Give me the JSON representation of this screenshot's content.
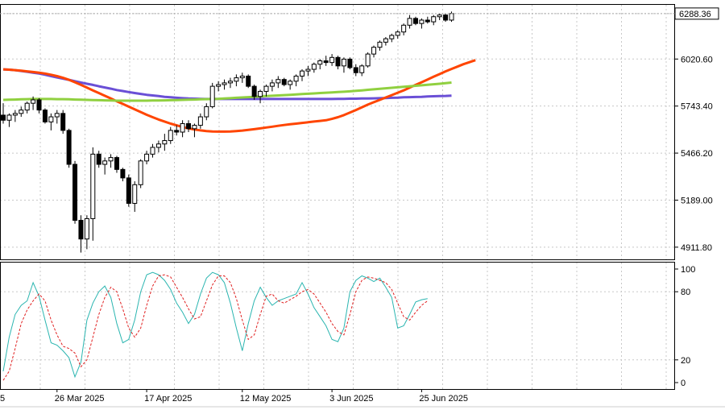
{
  "chart_data": [
    {
      "type": "candlestick",
      "panel": "price",
      "current_price": "6288.36",
      "price_axis_ticks": [
        "6288.36",
        "6020.60",
        "5743.40",
        "5466.20",
        "5189.00",
        "4911.80"
      ],
      "price_axis_values": [
        6288.36,
        6020.6,
        5743.4,
        5466.2,
        5189.0,
        4911.8
      ],
      "ylim": [
        4840,
        6340
      ],
      "x_tick_labels": [
        "26 Mar 2025",
        "17 Apr 2025",
        "12 May 2025",
        "3 Jun 2025",
        "25 Jun 2025"
      ],
      "x_tick_index": [
        9,
        24,
        40,
        55,
        70
      ],
      "x_left_partial_label": "5",
      "candles_ohlc": [
        [
          5690,
          5760,
          5640,
          5660
        ],
        [
          5660,
          5700,
          5620,
          5690
        ],
        [
          5690,
          5720,
          5650,
          5700
        ],
        [
          5700,
          5740,
          5680,
          5720
        ],
        [
          5720,
          5770,
          5700,
          5760
        ],
        [
          5760,
          5800,
          5720,
          5780
        ],
        [
          5780,
          5790,
          5700,
          5720
        ],
        [
          5720,
          5730,
          5640,
          5650
        ],
        [
          5650,
          5700,
          5600,
          5680
        ],
        [
          5680,
          5720,
          5640,
          5700
        ],
        [
          5700,
          5720,
          5580,
          5600
        ],
        [
          5600,
          5610,
          5380,
          5400
        ],
        [
          5400,
          5420,
          5050,
          5070
        ],
        [
          5070,
          5100,
          4880,
          4960
        ],
        [
          4960,
          5100,
          4900,
          5080
        ],
        [
          5080,
          5500,
          4950,
          5460
        ],
        [
          5460,
          5480,
          5380,
          5400
        ],
        [
          5400,
          5440,
          5340,
          5420
        ],
        [
          5420,
          5460,
          5380,
          5440
        ],
        [
          5440,
          5450,
          5350,
          5370
        ],
        [
          5370,
          5380,
          5300,
          5320
        ],
        [
          5320,
          5340,
          5150,
          5170
        ],
        [
          5170,
          5300,
          5120,
          5280
        ],
        [
          5280,
          5430,
          5260,
          5420
        ],
        [
          5420,
          5480,
          5400,
          5460
        ],
        [
          5460,
          5520,
          5440,
          5500
        ],
        [
          5500,
          5540,
          5470,
          5520
        ],
        [
          5520,
          5580,
          5480,
          5540
        ],
        [
          5540,
          5620,
          5520,
          5600
        ],
        [
          5600,
          5630,
          5570,
          5590
        ],
        [
          5590,
          5660,
          5560,
          5640
        ],
        [
          5640,
          5660,
          5590,
          5610
        ],
        [
          5610,
          5640,
          5560,
          5630
        ],
        [
          5630,
          5700,
          5610,
          5680
        ],
        [
          5680,
          5760,
          5660,
          5740
        ],
        [
          5740,
          5880,
          5730,
          5860
        ],
        [
          5860,
          5890,
          5830,
          5870
        ],
        [
          5870,
          5900,
          5840,
          5880
        ],
        [
          5880,
          5910,
          5850,
          5890
        ],
        [
          5890,
          5930,
          5860,
          5910
        ],
        [
          5910,
          5940,
          5880,
          5920
        ],
        [
          5920,
          5930,
          5850,
          5860
        ],
        [
          5860,
          5870,
          5780,
          5800
        ],
        [
          5800,
          5840,
          5760,
          5830
        ],
        [
          5830,
          5870,
          5800,
          5860
        ],
        [
          5860,
          5900,
          5830,
          5880
        ],
        [
          5880,
          5920,
          5850,
          5900
        ],
        [
          5900,
          5910,
          5860,
          5870
        ],
        [
          5870,
          5900,
          5840,
          5890
        ],
        [
          5890,
          5930,
          5860,
          5920
        ],
        [
          5920,
          5960,
          5890,
          5950
        ],
        [
          5950,
          5980,
          5920,
          5960
        ],
        [
          5960,
          6000,
          5940,
          5990
        ],
        [
          5990,
          6020,
          5960,
          6010
        ],
        [
          6010,
          6040,
          5980,
          6000
        ],
        [
          6000,
          6050,
          5980,
          6030
        ],
        [
          6030,
          6040,
          5960,
          5980
        ],
        [
          5980,
          6030,
          5940,
          6020
        ],
        [
          6020,
          6030,
          5960,
          5970
        ],
        [
          5970,
          5990,
          5920,
          5940
        ],
        [
          5940,
          5990,
          5920,
          5980
        ],
        [
          5980,
          6060,
          5970,
          6050
        ],
        [
          6050,
          6100,
          6030,
          6090
        ],
        [
          6090,
          6130,
          6070,
          6120
        ],
        [
          6120,
          6150,
          6100,
          6140
        ],
        [
          6140,
          6170,
          6120,
          6160
        ],
        [
          6160,
          6190,
          6140,
          6180
        ],
        [
          6180,
          6230,
          6160,
          6220
        ],
        [
          6220,
          6280,
          6200,
          6260
        ],
        [
          6260,
          6270,
          6220,
          6230
        ],
        [
          6230,
          6260,
          6200,
          6250
        ],
        [
          6250,
          6270,
          6230,
          6240
        ],
        [
          6240,
          6280,
          6220,
          6270
        ],
        [
          6270,
          6290,
          6250,
          6280
        ],
        [
          6280,
          6290,
          6240,
          6250
        ],
        [
          6250,
          6300,
          6240,
          6288.36
        ]
      ],
      "ma_series": [
        {
          "color": "#6a4fd6",
          "values": [
            5960,
            5958,
            5955,
            5950,
            5945,
            5940,
            5935,
            5928,
            5920,
            5912,
            5905,
            5898,
            5890,
            5882,
            5875,
            5868,
            5860,
            5853,
            5846,
            5838,
            5832,
            5826,
            5820,
            5815,
            5810,
            5806,
            5802,
            5798,
            5795,
            5792,
            5790,
            5788,
            5787,
            5786,
            5785,
            5785,
            5785,
            5785,
            5785,
            5785,
            5785,
            5785,
            5785,
            5785,
            5785,
            5785,
            5785,
            5785,
            5785,
            5785,
            5785,
            5785,
            5785,
            5785,
            5785,
            5785,
            5786,
            5786,
            5787,
            5787,
            5788,
            5788,
            5789,
            5790,
            5791,
            5792,
            5793,
            5795,
            5796,
            5797,
            5798,
            5800,
            5801,
            5802,
            5803,
            5805
          ]
        },
        {
          "color": "#ff4500",
          "values": [
            5960,
            5958,
            5955,
            5952,
            5948,
            5944,
            5940,
            5935,
            5928,
            5920,
            5910,
            5898,
            5884,
            5868,
            5852,
            5836,
            5820,
            5804,
            5788,
            5772,
            5756,
            5740,
            5724,
            5708,
            5692,
            5678,
            5664,
            5652,
            5640,
            5630,
            5620,
            5612,
            5605,
            5600,
            5596,
            5594,
            5593,
            5593,
            5594,
            5596,
            5599,
            5603,
            5607,
            5612,
            5617,
            5622,
            5627,
            5632,
            5636,
            5640,
            5644,
            5648,
            5652,
            5656,
            5660,
            5668,
            5678,
            5690,
            5705,
            5720,
            5736,
            5752,
            5766,
            5780,
            5794,
            5808,
            5822,
            5836,
            5852,
            5868,
            5884,
            5900,
            5916,
            5932,
            5948,
            5962,
            5976,
            5990,
            6002,
            6014
          ]
        },
        {
          "color": "#90d040",
          "values": [
            5780,
            5781,
            5782,
            5783,
            5784,
            5785,
            5785,
            5785,
            5785,
            5784,
            5784,
            5783,
            5782,
            5781,
            5780,
            5779,
            5778,
            5777,
            5776,
            5775,
            5775,
            5775,
            5775,
            5775,
            5775,
            5776,
            5776,
            5777,
            5778,
            5779,
            5780,
            5781,
            5782,
            5783,
            5784,
            5785,
            5786,
            5788,
            5790,
            5792,
            5794,
            5796,
            5798,
            5800,
            5802,
            5804,
            5806,
            5808,
            5810,
            5812,
            5814,
            5816,
            5818,
            5820,
            5822,
            5824,
            5826,
            5828,
            5830,
            5833,
            5836,
            5839,
            5842,
            5845,
            5848,
            5851,
            5854,
            5857,
            5860,
            5863,
            5866,
            5869,
            5872,
            5875,
            5878,
            5882
          ]
        }
      ]
    },
    {
      "type": "line",
      "panel": "stochastic",
      "y_axis_ticks": [
        "100",
        "80",
        "20",
        "0"
      ],
      "ylim": [
        0,
        100
      ],
      "series": [
        {
          "color": "#2ab5b0",
          "style": "solid",
          "values": [
            10,
            40,
            60,
            68,
            72,
            88,
            76,
            55,
            35,
            33,
            28,
            22,
            5,
            18,
            55,
            70,
            80,
            85,
            75,
            52,
            35,
            38,
            55,
            80,
            95,
            97,
            95,
            90,
            82,
            70,
            62,
            52,
            60,
            78,
            92,
            97,
            95,
            88,
            70,
            48,
            28,
            52,
            72,
            84,
            75,
            68,
            72,
            74,
            76,
            78,
            88,
            78,
            66,
            58,
            50,
            38,
            36,
            48,
            80,
            90,
            94,
            92,
            89,
            92,
            84,
            75,
            48,
            50,
            60,
            71,
            73,
            74
          ]
        },
        {
          "color": "#e02020",
          "style": "dashed",
          "values": [
            2,
            10,
            30,
            52,
            64,
            72,
            78,
            72,
            55,
            42,
            32,
            30,
            26,
            14,
            20,
            40,
            60,
            75,
            84,
            80,
            65,
            48,
            40,
            48,
            68,
            85,
            94,
            95,
            93,
            84,
            75,
            65,
            56,
            58,
            72,
            86,
            94,
            94,
            88,
            74,
            55,
            38,
            42,
            60,
            76,
            78,
            72,
            70,
            73,
            76,
            80,
            82,
            78,
            70,
            62,
            52,
            45,
            42,
            60,
            80,
            90,
            93,
            92,
            90,
            88,
            82,
            70,
            58,
            55,
            62,
            68,
            72
          ]
        }
      ]
    }
  ]
}
